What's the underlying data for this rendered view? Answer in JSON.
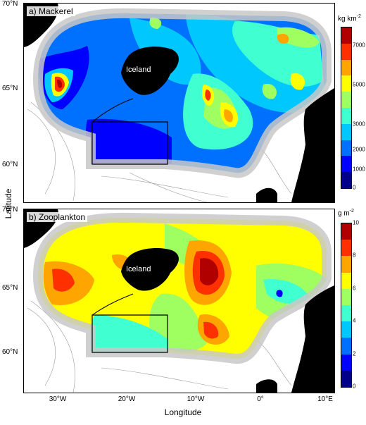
{
  "panels": [
    {
      "label": "a) Mackerel",
      "unit": "kg km",
      "unit_exp": "-2",
      "ticks": [
        "7000",
        "5000",
        "3000",
        "2000",
        "1000",
        "0"
      ]
    },
    {
      "label": "b) Zooplankton",
      "unit": "g m",
      "unit_exp": "-2",
      "ticks": [
        "10",
        "8",
        "6",
        "4",
        "2",
        "0"
      ]
    }
  ],
  "iceland_label": "Iceland",
  "y_ticks_a": [
    "70°N",
    "65°N",
    "60°N"
  ],
  "y_ticks_b": [
    "70°N",
    "65°N",
    "60°N"
  ],
  "x_ticks": [
    "30°W",
    "20°W",
    "10°W",
    "0°",
    "10°E"
  ],
  "xlabel": "Longitude",
  "ylabel": "Latitude",
  "colors": {
    "scale": [
      "#00008b",
      "#0000ff",
      "#0070ff",
      "#00c8ff",
      "#40ffd0",
      "#a0ff60",
      "#ffff00",
      "#ffa500",
      "#ff3000",
      "#b00000"
    ],
    "land": "#000000",
    "survey_mask": "#c8c8c8"
  }
}
